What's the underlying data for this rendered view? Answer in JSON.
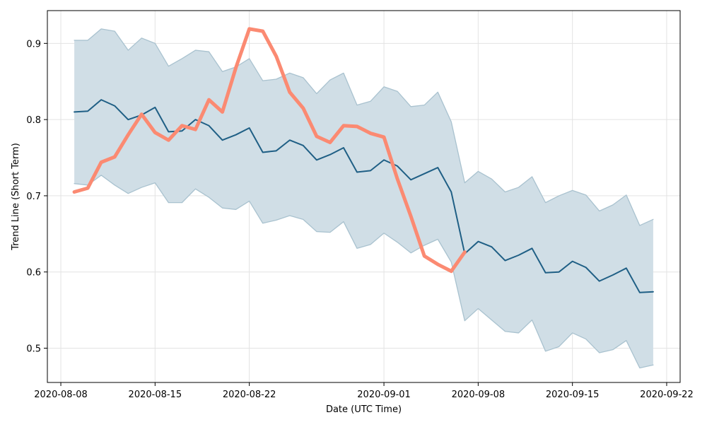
{
  "chart_data": {
    "type": "line",
    "xlabel": "Date (UTC Time)",
    "ylabel": "Trend Line (Short Term)",
    "x_axis_type": "date",
    "xlim": [
      "2020-08-07",
      "2020-09-23"
    ],
    "ylim": [
      0.455,
      0.943
    ],
    "x_ticks": [
      "2020-08-08",
      "2020-08-15",
      "2020-08-22",
      "2020-09-01",
      "2020-09-08",
      "2020-09-15",
      "2020-09-22"
    ],
    "y_ticks": [
      "0.5",
      "0.6",
      "0.7",
      "0.8",
      "0.9"
    ],
    "grid": true,
    "legend": "none",
    "colors": {
      "trend_line": "#1f5f85",
      "band_fill": "#d0dee6",
      "band_edge": "#a9c2cf",
      "actual": "#fb8a72",
      "grid": "#e3e3e3"
    },
    "series": [
      {
        "role": "trend_line",
        "points": [
          [
            "2020-08-09",
            0.81
          ],
          [
            "2020-08-10",
            0.811
          ],
          [
            "2020-08-11",
            0.826
          ],
          [
            "2020-08-12",
            0.818
          ],
          [
            "2020-08-13",
            0.8
          ],
          [
            "2020-08-14",
            0.806
          ],
          [
            "2020-08-15",
            0.816
          ],
          [
            "2020-08-16",
            0.784
          ],
          [
            "2020-08-17",
            0.785
          ],
          [
            "2020-08-18",
            0.8
          ],
          [
            "2020-08-19",
            0.792
          ],
          [
            "2020-08-20",
            0.773
          ],
          [
            "2020-08-21",
            0.78
          ],
          [
            "2020-08-22",
            0.789
          ],
          [
            "2020-08-23",
            0.757
          ],
          [
            "2020-08-24",
            0.759
          ],
          [
            "2020-08-25",
            0.773
          ],
          [
            "2020-08-26",
            0.766
          ],
          [
            "2020-08-27",
            0.747
          ],
          [
            "2020-08-28",
            0.754
          ],
          [
            "2020-08-29",
            0.763
          ],
          [
            "2020-08-30",
            0.731
          ],
          [
            "2020-08-31",
            0.733
          ],
          [
            "2020-09-01",
            0.747
          ],
          [
            "2020-09-02",
            0.739
          ],
          [
            "2020-09-03",
            0.721
          ],
          [
            "2020-09-04",
            0.729
          ],
          [
            "2020-09-05",
            0.737
          ],
          [
            "2020-09-06",
            0.705
          ],
          [
            "2020-09-07",
            0.624
          ],
          [
            "2020-09-08",
            0.64
          ],
          [
            "2020-09-09",
            0.633
          ],
          [
            "2020-09-10",
            0.615
          ],
          [
            "2020-09-11",
            0.622
          ],
          [
            "2020-09-12",
            0.631
          ],
          [
            "2020-09-13",
            0.599
          ],
          [
            "2020-09-14",
            0.6
          ],
          [
            "2020-09-15",
            0.614
          ],
          [
            "2020-09-16",
            0.606
          ],
          [
            "2020-09-17",
            0.588
          ],
          [
            "2020-09-18",
            0.596
          ],
          [
            "2020-09-19",
            0.605
          ],
          [
            "2020-09-20",
            0.573
          ],
          [
            "2020-09-21",
            0.574
          ]
        ]
      },
      {
        "role": "band_upper",
        "points": [
          [
            "2020-08-09",
            0.904
          ],
          [
            "2020-08-10",
            0.904
          ],
          [
            "2020-08-11",
            0.919
          ],
          [
            "2020-08-12",
            0.916
          ],
          [
            "2020-08-13",
            0.891
          ],
          [
            "2020-08-14",
            0.907
          ],
          [
            "2020-08-15",
            0.9
          ],
          [
            "2020-08-16",
            0.87
          ],
          [
            "2020-08-17",
            0.88
          ],
          [
            "2020-08-18",
            0.891
          ],
          [
            "2020-08-19",
            0.889
          ],
          [
            "2020-08-20",
            0.863
          ],
          [
            "2020-08-21",
            0.869
          ],
          [
            "2020-08-22",
            0.88
          ],
          [
            "2020-08-23",
            0.851
          ],
          [
            "2020-08-24",
            0.853
          ],
          [
            "2020-08-25",
            0.861
          ],
          [
            "2020-08-26",
            0.855
          ],
          [
            "2020-08-27",
            0.834
          ],
          [
            "2020-08-28",
            0.852
          ],
          [
            "2020-08-29",
            0.861
          ],
          [
            "2020-08-30",
            0.819
          ],
          [
            "2020-08-31",
            0.824
          ],
          [
            "2020-09-01",
            0.843
          ],
          [
            "2020-09-02",
            0.837
          ],
          [
            "2020-09-03",
            0.817
          ],
          [
            "2020-09-04",
            0.819
          ],
          [
            "2020-09-05",
            0.836
          ],
          [
            "2020-09-06",
            0.797
          ],
          [
            "2020-09-07",
            0.717
          ],
          [
            "2020-09-08",
            0.732
          ],
          [
            "2020-09-09",
            0.722
          ],
          [
            "2020-09-10",
            0.705
          ],
          [
            "2020-09-11",
            0.711
          ],
          [
            "2020-09-12",
            0.725
          ],
          [
            "2020-09-13",
            0.691
          ],
          [
            "2020-09-14",
            0.7
          ],
          [
            "2020-09-15",
            0.707
          ],
          [
            "2020-09-16",
            0.701
          ],
          [
            "2020-09-17",
            0.68
          ],
          [
            "2020-09-18",
            0.688
          ],
          [
            "2020-09-19",
            0.701
          ],
          [
            "2020-09-20",
            0.661
          ],
          [
            "2020-09-21",
            0.669
          ]
        ]
      },
      {
        "role": "band_lower",
        "points": [
          [
            "2020-08-09",
            0.716
          ],
          [
            "2020-08-10",
            0.714
          ],
          [
            "2020-08-11",
            0.727
          ],
          [
            "2020-08-12",
            0.714
          ],
          [
            "2020-08-13",
            0.703
          ],
          [
            "2020-08-14",
            0.711
          ],
          [
            "2020-08-15",
            0.717
          ],
          [
            "2020-08-16",
            0.691
          ],
          [
            "2020-08-17",
            0.691
          ],
          [
            "2020-08-18",
            0.709
          ],
          [
            "2020-08-19",
            0.698
          ],
          [
            "2020-08-20",
            0.684
          ],
          [
            "2020-08-21",
            0.682
          ],
          [
            "2020-08-22",
            0.693
          ],
          [
            "2020-08-23",
            0.664
          ],
          [
            "2020-08-24",
            0.668
          ],
          [
            "2020-08-25",
            0.674
          ],
          [
            "2020-08-26",
            0.669
          ],
          [
            "2020-08-27",
            0.653
          ],
          [
            "2020-08-28",
            0.652
          ],
          [
            "2020-08-29",
            0.666
          ],
          [
            "2020-08-30",
            0.631
          ],
          [
            "2020-08-31",
            0.636
          ],
          [
            "2020-09-01",
            0.651
          ],
          [
            "2020-09-02",
            0.639
          ],
          [
            "2020-09-03",
            0.625
          ],
          [
            "2020-09-04",
            0.635
          ],
          [
            "2020-09-05",
            0.643
          ],
          [
            "2020-09-06",
            0.613
          ],
          [
            "2020-09-07",
            0.536
          ],
          [
            "2020-09-08",
            0.552
          ],
          [
            "2020-09-09",
            0.537
          ],
          [
            "2020-09-10",
            0.522
          ],
          [
            "2020-09-11",
            0.52
          ],
          [
            "2020-09-12",
            0.537
          ],
          [
            "2020-09-13",
            0.496
          ],
          [
            "2020-09-14",
            0.502
          ],
          [
            "2020-09-15",
            0.52
          ],
          [
            "2020-09-16",
            0.512
          ],
          [
            "2020-09-17",
            0.494
          ],
          [
            "2020-09-18",
            0.498
          ],
          [
            "2020-09-19",
            0.51
          ],
          [
            "2020-09-20",
            0.474
          ],
          [
            "2020-09-21",
            0.478
          ]
        ]
      },
      {
        "role": "actual",
        "points": [
          [
            "2020-08-09",
            0.705
          ],
          [
            "2020-08-10",
            0.71
          ],
          [
            "2020-08-11",
            0.744
          ],
          [
            "2020-08-12",
            0.751
          ],
          [
            "2020-08-13",
            0.78
          ],
          [
            "2020-08-14",
            0.807
          ],
          [
            "2020-08-15",
            0.783
          ],
          [
            "2020-08-16",
            0.773
          ],
          [
            "2020-08-17",
            0.792
          ],
          [
            "2020-08-18",
            0.787
          ],
          [
            "2020-08-19",
            0.826
          ],
          [
            "2020-08-20",
            0.81
          ],
          [
            "2020-08-21",
            0.868
          ],
          [
            "2020-08-22",
            0.919
          ],
          [
            "2020-08-23",
            0.916
          ],
          [
            "2020-08-24",
            0.883
          ],
          [
            "2020-08-25",
            0.836
          ],
          [
            "2020-08-26",
            0.815
          ],
          [
            "2020-08-27",
            0.778
          ],
          [
            "2020-08-28",
            0.77
          ],
          [
            "2020-08-29",
            0.792
          ],
          [
            "2020-08-30",
            0.791
          ],
          [
            "2020-08-31",
            0.782
          ],
          [
            "2020-09-01",
            0.777
          ],
          [
            "2020-09-02",
            0.722
          ],
          [
            "2020-09-03",
            0.673
          ],
          [
            "2020-09-04",
            0.621
          ],
          [
            "2020-09-05",
            0.61
          ],
          [
            "2020-09-06",
            0.601
          ],
          [
            "2020-09-07",
            0.626
          ]
        ]
      }
    ]
  }
}
